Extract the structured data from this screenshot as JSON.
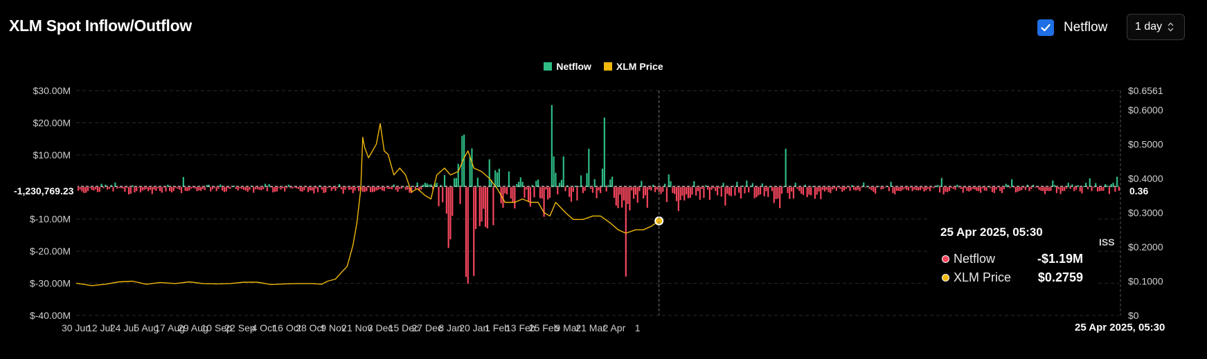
{
  "header": {
    "title": "XLM Spot Inflow/Outflow"
  },
  "controls": {
    "netflow_label": "Netflow",
    "netflow_checked": true,
    "interval": "1 day"
  },
  "colors": {
    "inflow": "#2ebd85",
    "outflow": "#f6465d",
    "price": "#f0b90b",
    "accent": "#1f6fe5",
    "grid": "#2b2b2b"
  },
  "tooltip": {
    "date": "25 Apr 2025, 05:30",
    "rows": [
      {
        "label": "Netflow",
        "value": "-$1.19M",
        "color": "#f6465d"
      },
      {
        "label": "XLM Price",
        "value": "$0.2759",
        "color": "#f0b90b"
      }
    ]
  },
  "crosshair": {
    "x_label": "25 Apr 2025, 05:30",
    "left_value": "-1,230,769.23",
    "right_value": "0.36"
  },
  "watermark": "ISS",
  "chart_data": {
    "type": "bar",
    "title": "XLM Spot Inflow/Outflow",
    "legend": [
      "Netflow",
      "XLM Price"
    ],
    "legend_position": "top-center",
    "grid": true,
    "x_tick_labels": [
      "30 Jun",
      "12 Jul",
      "24 Jul",
      "5 Aug",
      "17 Aug",
      "29 Aug",
      "10 Sep",
      "22 Sep",
      "4 Oct",
      "16 Oct",
      "28 Oct",
      "9 Nov",
      "21 Nov",
      "3 Dec",
      "15 Dec",
      "27 Dec",
      "8 Jan",
      "20 Jan",
      "1 Feb",
      "13 Feb",
      "25 Feb",
      "9 Mar",
      "21 Mar",
      "2 Apr",
      "1"
    ],
    "y_left": {
      "ticks": [
        "$30.00M",
        "$20.00M",
        "$10.00M",
        "$0",
        "$-10.00M",
        "$-20.00M",
        "$-30.00M",
        "$-40.00M"
      ],
      "ylim": [
        -40,
        30
      ],
      "unit": "USD millions"
    },
    "y_right": {
      "ticks": [
        "$0.6561",
        "$0.6000",
        "$0.5000",
        "$0.4000",
        "$0.3000",
        "$0.2000",
        "$0.1000",
        "$0"
      ],
      "ylim": [
        0,
        0.6561
      ]
    },
    "series": [
      {
        "name": "Netflow",
        "kind": "bar",
        "start_date": "2024-06-30",
        "interval_days": 1,
        "values": [
          -1.2,
          -1.2,
          -0.8,
          -1.4,
          -1.9,
          -1.8,
          -1.3,
          -0.3,
          -0.9,
          -1.1,
          -0.7,
          -1.6,
          -1.5,
          1.0,
          -0.4,
          0.7,
          -0.8,
          -0.6,
          0.6,
          -1.4,
          1.4,
          -0.5,
          -0.3,
          -0.4,
          -0.5,
          -1.5,
          -0.3,
          -2.3,
          -2.1,
          0.5,
          -1.7,
          -1.3,
          -0.2,
          -1.7,
          -1.1,
          -0.9,
          -0.6,
          -1.3,
          -0.9,
          -2.2,
          -0.8,
          -1.2,
          -0.4,
          -1.3,
          -1.8,
          -0.2,
          -1.4,
          0.7,
          -1.3,
          -1.7,
          -1.3,
          -0.3,
          -0.5,
          -0.8,
          -1.9,
          3.1,
          -1.2,
          -1.3,
          -1.1,
          -0.5,
          -0.3,
          -0.5,
          -1.3,
          -1.1,
          -1.2,
          -0.6,
          -1.0,
          0.6,
          0.7,
          -1.4,
          -0.7,
          -0.3,
          -1.3,
          -0.6,
          0.8,
          -1.1,
          -1.6,
          -1.4,
          -0.4,
          -0.6,
          0.2,
          0.4,
          -0.6,
          -1.1,
          -0.4,
          -0.6,
          -0.9,
          -1.1,
          -1.5,
          -0.9,
          0.4,
          -1.8,
          -0.7,
          -0.7,
          -0.9,
          -1.0,
          -0.7,
          1.0,
          -1.3,
          0.9,
          -0.2,
          -1.7,
          -1.5,
          -1.4,
          -0.3,
          -0.8,
          -0.4,
          -1.4,
          -0.4,
          0.7,
          -0.4,
          -0.5,
          -0.2,
          -0.4,
          -0.6,
          -1.3,
          -1.5,
          -1.0,
          -0.2,
          -1.6,
          -1.1,
          -1.1,
          -2.0,
          -0.5,
          -1.6,
          0.5,
          -0.8,
          -1.9,
          -1.7,
          -0.3,
          -0.1,
          -1.2,
          -0.6,
          -1.2,
          -0.4,
          0.9,
          -0.7,
          -2.1,
          -0.9,
          -0.2,
          -0.9,
          -0.8,
          -1.9,
          -1.1,
          -0.3,
          -1.3,
          -0.9,
          -1.5,
          -1.6,
          -1.3,
          -0.2,
          -1.6,
          -1.6,
          -1.5,
          -1.1,
          -0.9,
          -0.6,
          -1.1,
          -1.3,
          -0.3,
          -0.6,
          -0.6,
          -0.7,
          0.8,
          -0.9,
          -1.5,
          -0.6,
          -0.5,
          0.1,
          -0.9,
          -0.8,
          -1.8,
          -1.9,
          0.3,
          -0.6,
          1.4,
          -1.1,
          -0.8,
          0.7,
          1.3,
          1.1,
          0.7,
          0.8,
          -0.8,
          1.1,
          1.3,
          -6.0,
          0.6,
          -4.8,
          3.7,
          -8.3,
          -19.0,
          -16.3,
          -9.0,
          2.7,
          2.8,
          7.2,
          -5.3,
          15.9,
          16.3,
          -28.0,
          -30.1,
          9.4,
          12.0,
          -27.7,
          -13.1,
          2.9,
          -12.2,
          -10.8,
          -6.8,
          -12.5,
          -12.9,
          8.6,
          2.2,
          -11.9,
          5.2,
          4.5,
          5.7,
          -5.1,
          -6.5,
          -2.0,
          -2.3,
          4.8,
          -3.6,
          -4.9,
          -6.7,
          0.9,
          1.6,
          3.0,
          1.6,
          -3.4,
          -0.8,
          -4.4,
          -6.1,
          0.6,
          -3.2,
          1.9,
          2.3,
          -3.5,
          -3.6,
          -9.3,
          -0.8,
          -3.9,
          -3.4,
          25.5,
          9.5,
          4.4,
          -2.3,
          1.3,
          2.2,
          9.5,
          -1.3,
          0.5,
          -3.1,
          -4.6,
          -1.5,
          0.4,
          -4.2,
          0.3,
          3.6,
          -1.9,
          -1.2,
          4.3,
          11.9,
          -0.6,
          -1.8,
          2.4,
          -3.5,
          -1.1,
          -1.9,
          5.7,
          21.6,
          -1.4,
          0.6,
          2.3,
          3.2,
          -3.4,
          -5.8,
          -6.6,
          -2.4,
          -6.4,
          -4.2,
          -27.9,
          -5.3,
          -7.3,
          -1.1,
          -3.7,
          -2.4,
          -4.9,
          -1.3,
          1.9,
          -3.6,
          -2.6,
          -6.5,
          -0.8,
          -1.1,
          0.7,
          -1.6,
          -0.8,
          -1.5,
          -2.2,
          -1.5,
          1.0,
          -4.7,
          3.9,
          1.8,
          -1.9,
          -2.2,
          -4.4,
          -7.5,
          -4.1,
          -2.7,
          -4.2,
          -2.3,
          -3.5,
          -3.4,
          -2.4,
          1.8,
          -2.7,
          -1.3,
          -4.0,
          -0.6,
          -3.4,
          0.5,
          -0.8,
          -4.0,
          -0.9,
          -0.4,
          -1.3,
          -2.6,
          -0.4,
          -3.0,
          1.3,
          -5.8,
          -2.1,
          -2.6,
          -2.9,
          0.3,
          -2.7,
          1.6,
          -1.8,
          -3.6,
          0.4,
          -2.0,
          2.0,
          -1.7,
          0.3,
          1.2,
          -3.5,
          -3.2,
          -2.6,
          -2.3,
          1.1,
          -2.9,
          -1.3,
          -3.1,
          0.1,
          -1.3,
          -5.0,
          -3.8,
          -3.6,
          -6.6,
          -2.1,
          0.1,
          11.9,
          -1.9,
          -3.7,
          -1.4,
          -3.6,
          1.3,
          -0.6,
          -1.3,
          -2.1,
          -2.5,
          0.7,
          -3.2,
          -2.4,
          -2.6,
          0.3,
          -3.7,
          -2.4,
          -1.4,
          -3.8,
          -0.9,
          -1.4,
          -0.9,
          -1.6,
          -1.9,
          -0.8,
          -0.5,
          -1.2,
          -0.1,
          -0.6,
          -1.5,
          -1.1,
          -0.6,
          -0.2,
          -1.2,
          0.6,
          -0.9,
          -1.1,
          -0.9,
          -1.3,
          -0.2,
          1.4,
          -0.1,
          0.1,
          -0.6,
          -1.0,
          -1.5,
          -2.1,
          -0.2,
          0.2,
          -0.8,
          -0.6,
          -0.1,
          0.3,
          -1.3,
          1.6,
          -1.9,
          -2.3,
          -1.2,
          -1.2,
          -1.3,
          -0.9,
          -0.5,
          -0.9,
          -1.1,
          -0.3,
          -1.3,
          -0.8,
          -1.0,
          -1.1,
          -1.0,
          -0.5,
          -1.4,
          -1.1,
          -0.6,
          -1.3,
          -0.1,
          -0.4,
          0.4,
          0.6,
          -1.7,
          2.8,
          -2.3,
          -1.5,
          -1.6,
          -1.2,
          -0.3,
          -0.6,
          -0.9,
          0.7,
          -0.3,
          -0.6,
          -1.8,
          -0.4,
          -1.2,
          -1.4,
          -1.1,
          -0.6,
          -0.8,
          -1.2,
          -1.3,
          -1.8,
          -0.4,
          -1.1,
          -1.2,
          0.1,
          -0.4,
          -1.6,
          -1.9,
          -0.8,
          -0.2,
          -1.3,
          -1.9,
          -0.7,
          1.0,
          0.6,
          -0.4,
          2.4,
          -0.1,
          -1.7,
          -1.5,
          -1.2,
          -1.0,
          -0.3,
          -0.9,
          0.7,
          -1.3,
          -0.6,
          0.7,
          -0.1,
          -0.1,
          -0.9,
          -1.2,
          -1.3,
          -2.2,
          -1.2,
          -1.3,
          -1.2,
          2.0,
          0.6,
          -1.9,
          -0.7,
          -2.2,
          -1.3,
          -1.2,
          -0.5,
          1.3,
          -0.6,
          0.8,
          -1.3,
          -0.8,
          0.5,
          -1.4,
          -2.0,
          0.3,
          1.3,
          -0.7,
          2.7,
          -1.3,
          -0.2,
          1.2,
          -1.4,
          -1.3,
          -1.2,
          -1.2,
          0.9,
          0.4,
          -2.2,
          0.9,
          1.3,
          -1.5,
          3.2,
          -1.19
        ]
      },
      {
        "name": "XLM Price",
        "kind": "line",
        "points": [
          [
            "2024-06-30",
            0.094
          ],
          [
            "2024-07-08",
            0.087
          ],
          [
            "2024-07-15",
            0.091
          ],
          [
            "2024-07-22",
            0.098
          ],
          [
            "2024-07-29",
            0.1
          ],
          [
            "2024-08-05",
            0.091
          ],
          [
            "2024-08-12",
            0.096
          ],
          [
            "2024-08-20",
            0.093
          ],
          [
            "2024-08-27",
            0.098
          ],
          [
            "2024-09-03",
            0.093
          ],
          [
            "2024-09-10",
            0.092
          ],
          [
            "2024-09-17",
            0.093
          ],
          [
            "2024-09-24",
            0.097
          ],
          [
            "2024-10-01",
            0.097
          ],
          [
            "2024-10-08",
            0.09
          ],
          [
            "2024-10-15",
            0.092
          ],
          [
            "2024-10-22",
            0.093
          ],
          [
            "2024-10-29",
            0.093
          ],
          [
            "2024-11-03",
            0.091
          ],
          [
            "2024-11-06",
            0.1
          ],
          [
            "2024-11-10",
            0.106
          ],
          [
            "2024-11-13",
            0.125
          ],
          [
            "2024-11-16",
            0.143
          ],
          [
            "2024-11-19",
            0.205
          ],
          [
            "2024-11-21",
            0.27
          ],
          [
            "2024-11-23",
            0.37
          ],
          [
            "2024-11-24",
            0.52
          ],
          [
            "2024-11-25",
            0.49
          ],
          [
            "2024-11-27",
            0.46
          ],
          [
            "2024-12-01",
            0.5
          ],
          [
            "2024-12-03",
            0.56
          ],
          [
            "2024-12-05",
            0.48
          ],
          [
            "2024-12-07",
            0.47
          ],
          [
            "2024-12-10",
            0.41
          ],
          [
            "2024-12-13",
            0.43
          ],
          [
            "2024-12-16",
            0.41
          ],
          [
            "2024-12-19",
            0.36
          ],
          [
            "2024-12-22",
            0.37
          ],
          [
            "2024-12-26",
            0.35
          ],
          [
            "2024-12-29",
            0.34
          ],
          [
            "2025-01-01",
            0.41
          ],
          [
            "2025-01-05",
            0.43
          ],
          [
            "2025-01-08",
            0.41
          ],
          [
            "2025-01-12",
            0.42
          ],
          [
            "2025-01-15",
            0.46
          ],
          [
            "2025-01-17",
            0.48
          ],
          [
            "2025-01-20",
            0.43
          ],
          [
            "2025-01-24",
            0.42
          ],
          [
            "2025-01-28",
            0.4
          ],
          [
            "2025-02-01",
            0.37
          ],
          [
            "2025-02-05",
            0.33
          ],
          [
            "2025-02-10",
            0.33
          ],
          [
            "2025-02-14",
            0.34
          ],
          [
            "2025-02-18",
            0.33
          ],
          [
            "2025-02-22",
            0.33
          ],
          [
            "2025-02-25",
            0.3
          ],
          [
            "2025-02-28",
            0.29
          ],
          [
            "2025-03-03",
            0.33
          ],
          [
            "2025-03-08",
            0.3
          ],
          [
            "2025-03-12",
            0.28
          ],
          [
            "2025-03-17",
            0.28
          ],
          [
            "2025-03-22",
            0.29
          ],
          [
            "2025-03-26",
            0.29
          ],
          [
            "2025-03-31",
            0.27
          ],
          [
            "2025-04-04",
            0.25
          ],
          [
            "2025-04-08",
            0.24
          ],
          [
            "2025-04-13",
            0.25
          ],
          [
            "2025-04-17",
            0.25
          ],
          [
            "2025-04-21",
            0.26
          ],
          [
            "2025-04-25",
            0.2759
          ]
        ]
      }
    ]
  }
}
